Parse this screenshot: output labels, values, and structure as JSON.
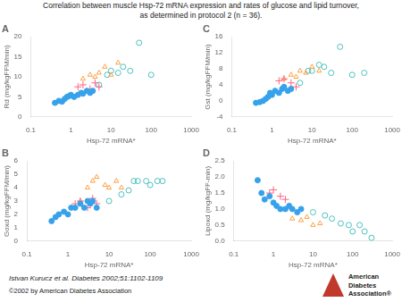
{
  "title": "Correlation between muscle Hsp-72 mRNA expression and rates of glucose and lipid turnover,",
  "subtitle": "as determined in protocol 2 (n = 36).",
  "annotations": [
    "Istvan Kurucz et al. Diabetes 2002;51:1102-1109",
    "©2002 by American Diabetes Association",
    "American",
    "Diabetes",
    "Association®"
  ],
  "chart_data": [
    {
      "type": "scatter",
      "title": "A",
      "x_label": "Hsp-72 mRNA*",
      "y_label": "Rd (mg/kgFFM/min)",
      "log": "x",
      "grid": false,
      "xlim": [
        0.1,
        1000
      ],
      "xticks": [
        0.1,
        1,
        10,
        100,
        1000
      ],
      "ylim": [
        0,
        20
      ],
      "yticks": [
        0,
        5,
        10,
        15,
        20
      ],
      "series": [
        {
          "marker": "circle",
          "x": [
            0.4,
            0.5,
            0.6,
            0.7,
            0.8,
            0.9,
            1.0,
            1.2,
            1.5,
            1.8,
            2.0,
            2.5,
            3.0,
            3.5
          ],
          "values": [
            3.5,
            4.0,
            3.8,
            4.5,
            5.0,
            5.2,
            5.5,
            5.0,
            5.5,
            6.0,
            5.8,
            6.5,
            6.0,
            6.5
          ]
        },
        {
          "marker": "plus",
          "x": [
            1.5,
            2.0,
            3.0,
            4.0,
            5.0
          ],
          "values": [
            7.5,
            8.0,
            7.0,
            8.5,
            7.5
          ]
        },
        {
          "marker": "open_triangle",
          "x": [
            2.0,
            3.0,
            4.0,
            5.0,
            7.0,
            10.0,
            15.0
          ],
          "values": [
            9.5,
            10.5,
            10.0,
            11.0,
            12.5,
            10.5,
            13.5
          ]
        },
        {
          "marker": "open_circle",
          "x": [
            5.0,
            8.0,
            10.0,
            15.0,
            20.0,
            30.0,
            50.0,
            100.0
          ],
          "values": [
            8.0,
            10.5,
            11.5,
            11.0,
            12.5,
            11.5,
            18.5,
            10.5
          ]
        }
      ]
    },
    {
      "type": "scatter",
      "title": "C",
      "x_label": "Hsp-72 mRNA*",
      "y_label": "Gst (mg/kgFFM/min)",
      "log": "x",
      "grid": false,
      "xlim": [
        0.1,
        1000
      ],
      "xticks": [
        0.1,
        1,
        10,
        100,
        1000
      ],
      "ylim": [
        -4,
        16
      ],
      "yticks": [
        -4,
        0,
        4,
        8,
        12,
        16
      ],
      "series": [
        {
          "marker": "circle",
          "x": [
            0.4,
            0.5,
            0.6,
            0.7,
            0.8,
            0.9,
            1.0,
            1.2,
            1.5,
            1.8,
            2.0,
            2.5,
            3.0
          ],
          "values": [
            -0.5,
            -0.3,
            0.0,
            0.5,
            1.0,
            2.0,
            1.5,
            2.5,
            2.0,
            3.0,
            3.5,
            2.5,
            3.0
          ]
        },
        {
          "marker": "plus",
          "x": [
            1.5,
            2.0,
            3.0,
            4.0
          ],
          "values": [
            5.0,
            5.5,
            4.5,
            3.5
          ]
        },
        {
          "marker": "open_triangle",
          "x": [
            2.0,
            3.0,
            4.0,
            5.0,
            7.0,
            10.0,
            15.0
          ],
          "values": [
            5.5,
            6.5,
            6.0,
            7.5,
            7.0,
            8.5,
            7.5
          ]
        },
        {
          "marker": "open_circle",
          "x": [
            5.0,
            8.0,
            10.0,
            15.0,
            20.0,
            30.0,
            50.0,
            100.0,
            200.0
          ],
          "values": [
            4.5,
            7.5,
            7.5,
            9.0,
            8.5,
            7.0,
            13.5,
            6.5,
            7.0
          ]
        }
      ]
    },
    {
      "type": "scatter",
      "title": "B",
      "x_label": "Hsp-72 mRNA*",
      "y_label": "Goxd (mg/kgFFM/min)",
      "log": "x",
      "grid": false,
      "xlim": [
        0.1,
        1000
      ],
      "xticks": [
        0.1,
        1,
        10,
        100,
        1000
      ],
      "ylim": [
        0,
        6
      ],
      "yticks": [
        0,
        1,
        2,
        3,
        4,
        5,
        6
      ],
      "series": [
        {
          "marker": "circle",
          "x": [
            0.4,
            0.5,
            0.6,
            0.8,
            1.0,
            1.2,
            1.5,
            2.0,
            2.5,
            3.0,
            3.5,
            4.0,
            5.0
          ],
          "values": [
            1.5,
            1.8,
            2.0,
            2.2,
            2.0,
            2.5,
            2.5,
            2.8,
            2.5,
            3.0,
            2.8,
            3.0,
            2.5
          ]
        },
        {
          "marker": "plus",
          "x": [
            1.5,
            2.0,
            3.0,
            4.0,
            5.0
          ],
          "values": [
            2.8,
            3.0,
            2.5,
            3.2,
            2.8
          ]
        },
        {
          "marker": "open_triangle",
          "x": [
            2.0,
            3.0,
            4.0,
            5.0,
            8.0,
            10.0,
            15.0,
            20.0
          ],
          "values": [
            3.0,
            4.0,
            4.5,
            4.8,
            4.2,
            4.0,
            4.5,
            4.0
          ]
        },
        {
          "marker": "open_circle",
          "x": [
            10.0,
            20.0,
            30.0,
            40.0,
            50.0,
            80.0,
            100.0,
            150.0,
            200.0
          ],
          "values": [
            3.0,
            3.5,
            3.8,
            4.5,
            4.5,
            4.5,
            4.2,
            4.5,
            4.5
          ]
        }
      ]
    },
    {
      "type": "scatter",
      "title": "D",
      "x_label": "Hsp-72 mRNA*",
      "y_label": "Lipoxd (mg/kgFF-min)",
      "log": "x",
      "grid": false,
      "xlim": [
        0.1,
        1000
      ],
      "xticks": [
        0.1,
        1,
        10,
        100,
        1000
      ],
      "ylim": [
        0,
        2.5
      ],
      "yticks": [
        {
          "value": 0,
          "label": "0.0"
        },
        0.5,
        {
          "value": 1.0,
          "label": "1.0"
        },
        1.5,
        {
          "value": 2.0,
          "label": "2.0"
        },
        2.5
      ],
      "series": [
        {
          "marker": "circle",
          "x": [
            0.4,
            0.5,
            0.6,
            0.8,
            1.0,
            1.2,
            1.5,
            2.0,
            2.5,
            3.0,
            4.0,
            5.0
          ],
          "values": [
            1.9,
            1.5,
            1.3,
            1.4,
            1.2,
            1.1,
            1.0,
            1.0,
            1.1,
            1.0,
            0.9,
            1.0
          ]
        },
        {
          "marker": "plus",
          "x": [
            0.8,
            1.0,
            1.5,
            2.0
          ],
          "values": [
            1.5,
            1.6,
            1.4,
            1.3
          ]
        },
        {
          "marker": "open_triangle",
          "x": [
            3.0,
            5.0,
            7.0,
            10.0,
            15.0
          ],
          "values": [
            0.7,
            0.65,
            0.75,
            0.5,
            0.55
          ]
        },
        {
          "marker": "open_circle",
          "x": [
            10.0,
            20.0,
            30.0,
            50.0,
            80.0,
            100.0,
            150.0,
            200.0,
            300.0
          ],
          "values": [
            0.9,
            0.8,
            0.7,
            0.55,
            0.5,
            0.3,
            0.5,
            0.3,
            0.1
          ]
        }
      ]
    }
  ]
}
